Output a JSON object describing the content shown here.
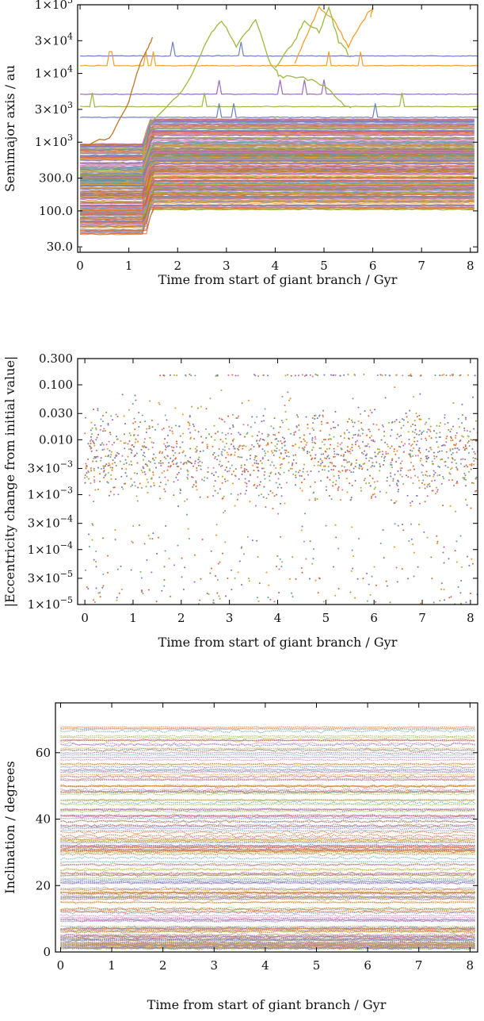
{
  "colors": [
    "#6b7fc4",
    "#f2a02c",
    "#9abb3c",
    "#c0762a",
    "#9b6bbf",
    "#e8642e",
    "#5fa3b8",
    "#d77ab8"
  ],
  "chart_data": [
    {
      "type": "line",
      "xlabel": "Time from start of giant branch / Gyr",
      "ylabel": "Semimajor axis / au",
      "xlim": [
        -0.05,
        8.15
      ],
      "ylim": [
        25,
        100000
      ],
      "yscale": "log",
      "xticks": [
        0,
        1,
        2,
        3,
        4,
        5,
        6,
        7,
        8
      ],
      "xtick_labels": [
        "0",
        "1",
        "2",
        "3",
        "4",
        "5",
        "6",
        "7",
        "8"
      ],
      "yticks": [
        30,
        100,
        300,
        1000,
        3000,
        10000,
        30000,
        100000
      ],
      "ytick_labels": [
        {
          "m": "30.0",
          "e": ""
        },
        {
          "m": "100.0",
          "e": ""
        },
        {
          "m": "300.0",
          "e": ""
        },
        {
          "m": "1×10",
          "e": "3"
        },
        {
          "m": "3×10",
          "e": "3"
        },
        {
          "m": "1×10",
          "e": "4"
        },
        {
          "m": "3×10",
          "e": "4"
        },
        {
          "m": "1×10",
          "e": "5"
        }
      ],
      "series_count": 260,
      "mass_loss_time": 1.45,
      "expansion_factor": 2.3,
      "initial_range": [
        45,
        950
      ],
      "highlighted_series": [
        {
          "x": [
            0,
            0.6,
            1.0,
            1.2,
            1.4,
            1.5
          ],
          "y": [
            900,
            1100,
            4000,
            12000,
            25000,
            35000
          ]
        },
        {
          "x": [
            1.4,
            1.6,
            2.2,
            2.6,
            2.9,
            3.2,
            3.6,
            3.9,
            4.1,
            4.5,
            5.0,
            5.3,
            5.6
          ],
          "y": [
            1800,
            2400,
            7000,
            30000,
            60000,
            25000,
            60000,
            14000,
            9000,
            9000,
            7000,
            4000,
            3000
          ]
        },
        {
          "x": [
            4.4,
            4.6,
            4.9,
            5.2,
            5.5,
            5.8,
            6.0,
            5.95
          ],
          "y": [
            14000,
            30000,
            90000,
            60000,
            25000,
            60000,
            90000,
            60000
          ]
        },
        {
          "x": [
            4.0,
            4.4,
            4.6,
            4.9,
            5.1,
            5.3,
            5.6
          ],
          "y": [
            12000,
            30000,
            60000,
            40000,
            90000,
            30000,
            15000
          ]
        }
      ],
      "persistent_series": [
        {
          "value": 18000,
          "color": "#6b7fc4"
        },
        {
          "value": 13000,
          "color": "#f2a02c"
        },
        {
          "value": 5000,
          "color": "#9b6bbf"
        },
        {
          "value": 3300,
          "color": "#9abb3c"
        },
        {
          "value": 2300,
          "color": "#6b7fc4"
        }
      ],
      "grid": false
    },
    {
      "type": "scatter",
      "xlabel": "Time from start of giant branch / Gyr",
      "ylabel": "|Eccentricity change from initial value|",
      "xlim": [
        -0.15,
        8.15
      ],
      "ylim": [
        1e-05,
        0.3
      ],
      "yscale": "log",
      "xticks": [
        0,
        1,
        2,
        3,
        4,
        5,
        6,
        7,
        8
      ],
      "xtick_labels": [
        "0",
        "1",
        "2",
        "3",
        "4",
        "5",
        "6",
        "7",
        "8"
      ],
      "yticks": [
        1e-05,
        3e-05,
        0.0001,
        0.0003,
        0.001,
        0.003,
        0.01,
        0.03,
        0.1,
        0.3
      ],
      "ytick_labels": [
        {
          "m": "1×10",
          "e": "−5"
        },
        {
          "m": "3×10",
          "e": "−5"
        },
        {
          "m": "1×10",
          "e": "−4"
        },
        {
          "m": "3×10",
          "e": "−4"
        },
        {
          "m": "1×10",
          "e": "−3"
        },
        {
          "m": "3×10",
          "e": "−3"
        },
        {
          "m": "0.010",
          "e": ""
        },
        {
          "m": "0.030",
          "e": ""
        },
        {
          "m": "0.100",
          "e": ""
        },
        {
          "m": "0.300",
          "e": ""
        }
      ],
      "point_count": 7000,
      "typical_range": [
        0.0003,
        0.1
      ],
      "saturation_level": 0.15,
      "grid": false
    },
    {
      "type": "scatter",
      "xlabel": "Time from start of giant branch / Gyr",
      "ylabel": "Inclination / degrees",
      "xlim": [
        -0.1,
        8.15
      ],
      "ylim": [
        0,
        75
      ],
      "xticks": [
        0,
        1,
        2,
        3,
        4,
        5,
        6,
        7,
        8
      ],
      "xtick_labels": [
        "0",
        "1",
        "2",
        "3",
        "4",
        "5",
        "6",
        "7",
        "8"
      ],
      "yticks": [
        0,
        20,
        40,
        60
      ],
      "ytick_labels": [
        {
          "m": "0",
          "e": ""
        },
        {
          "m": "20",
          "e": ""
        },
        {
          "m": "40",
          "e": ""
        },
        {
          "m": "60",
          "e": ""
        }
      ],
      "band_count": 180,
      "inclination_range": [
        1,
        70
      ],
      "grid": false
    }
  ]
}
